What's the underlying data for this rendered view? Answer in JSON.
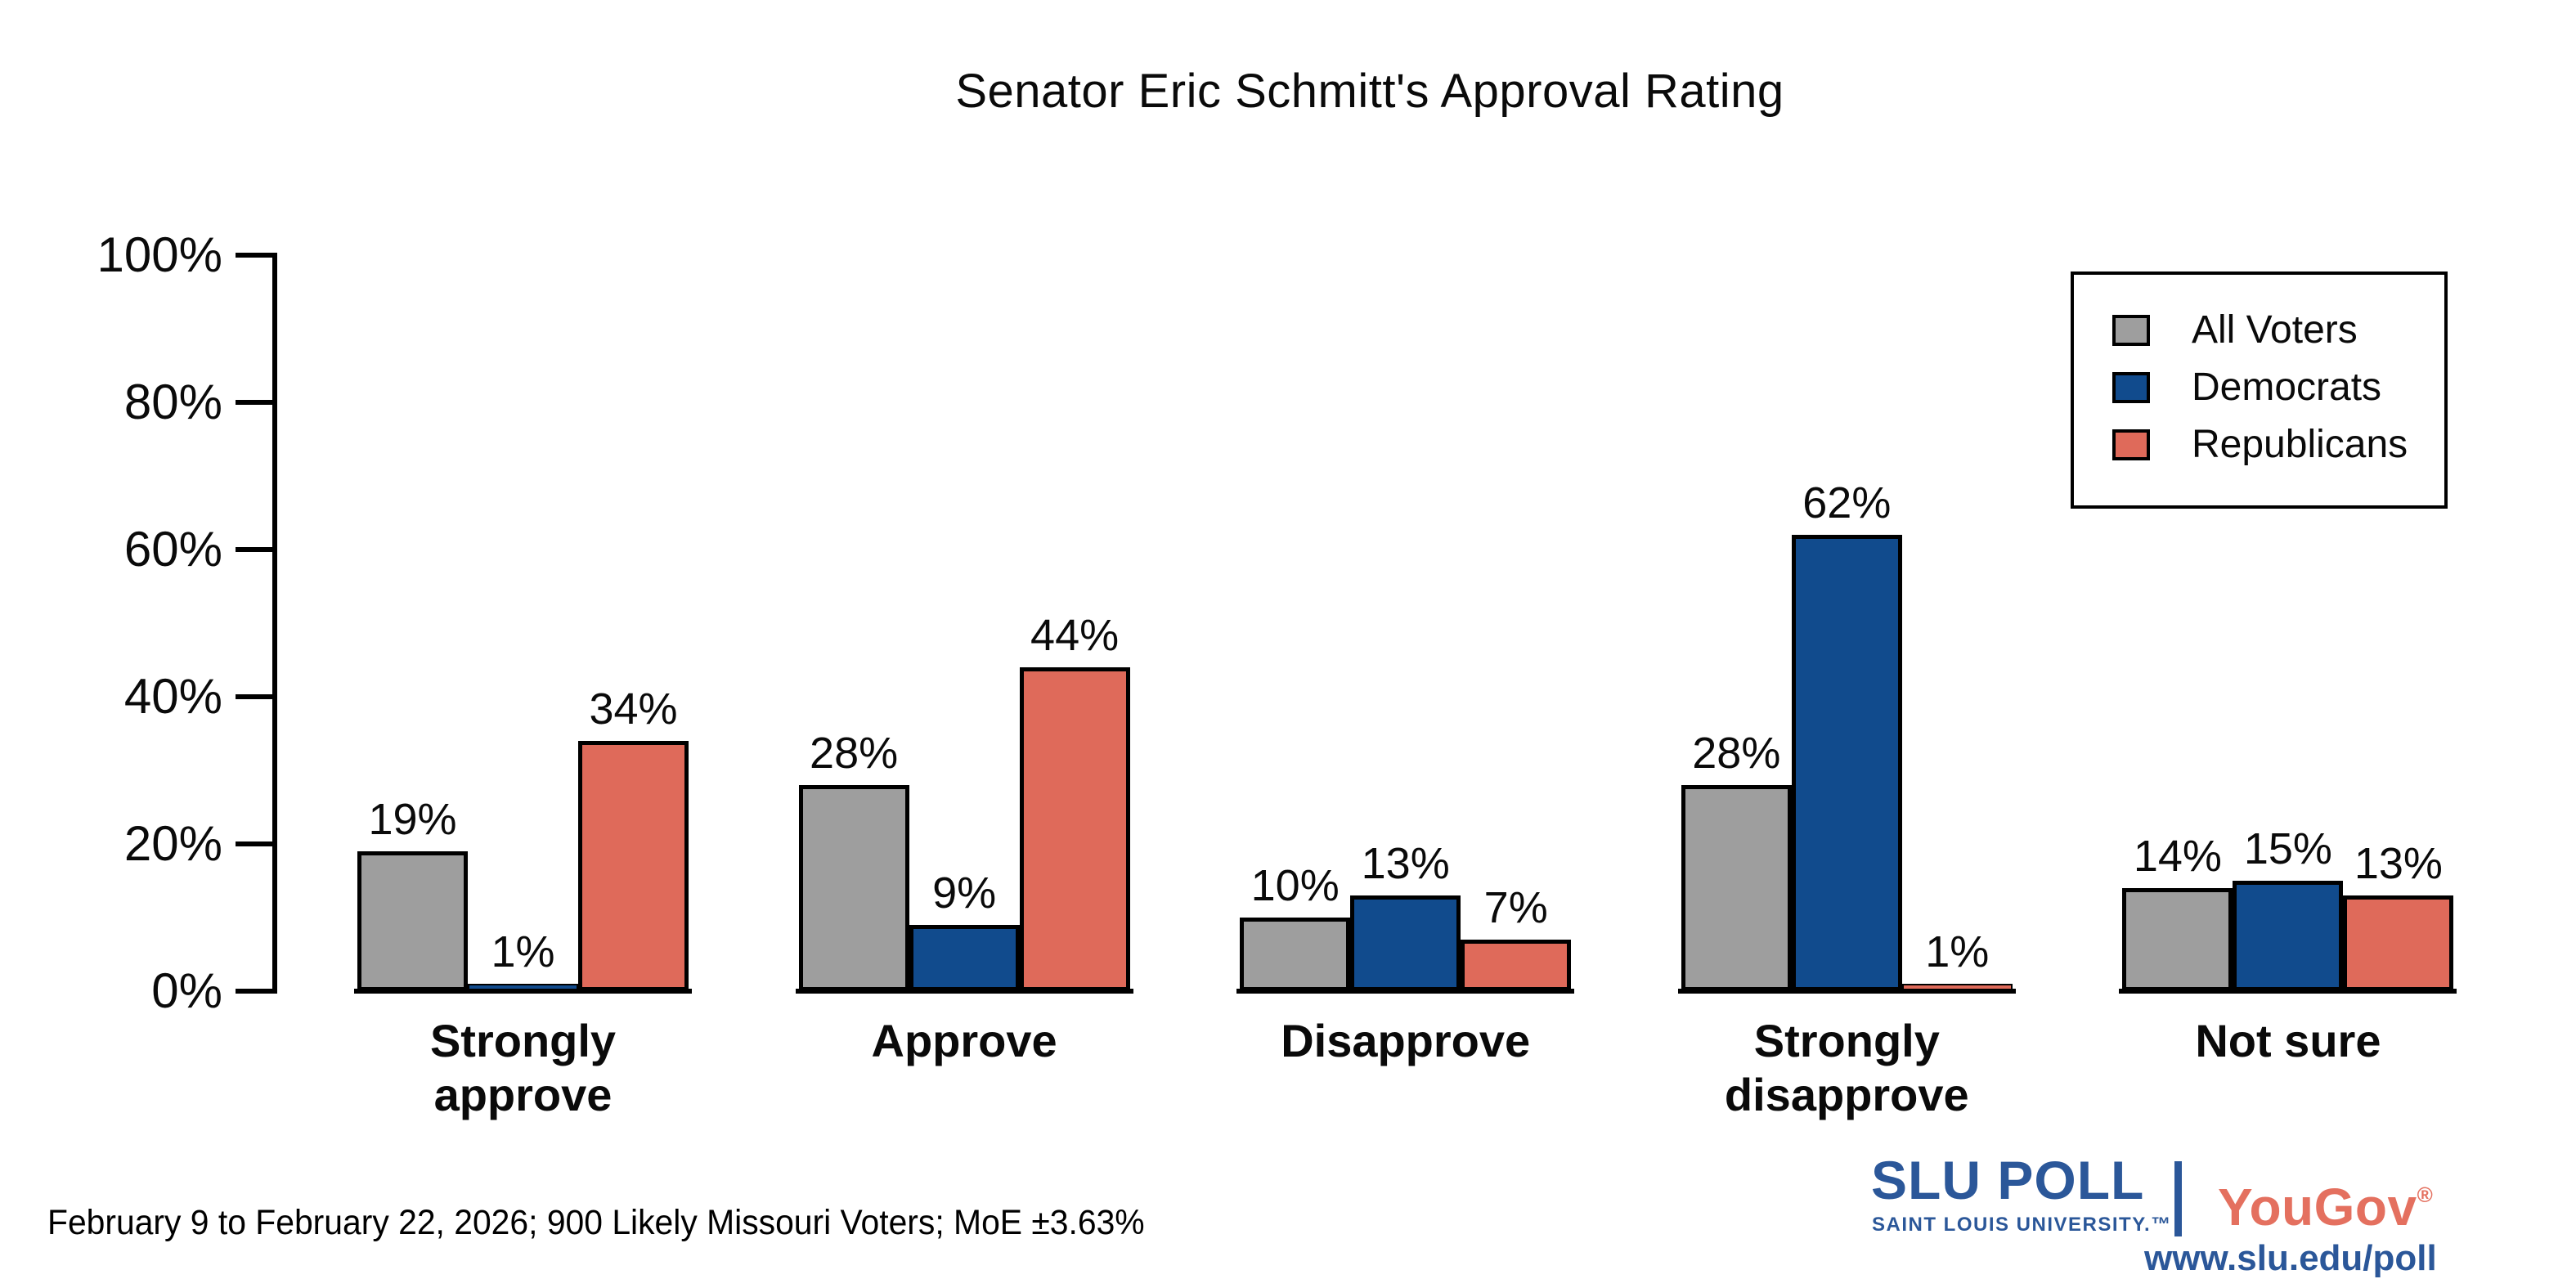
{
  "footer": {
    "text": "February 9 to February 22, 2026; 900 Likely Missouri Voters; MoE ±3.63%"
  },
  "branding": {
    "slu_poll": "SLU POLL",
    "slu_subtitle": "SAINT LOUIS UNIVERSITY.™",
    "partner": "YouGov",
    "registered_mark": "®",
    "url": "www.slu.edu/poll",
    "slu_blue": "#2b5799",
    "yougov_red": "#e4705f"
  },
  "chart_data": {
    "type": "bar",
    "title": "Senator Eric Schmitt's Approval Rating",
    "categories": [
      "Strongly\napprove",
      "Approve",
      "Disapprove",
      "Strongly\ndisapprove",
      "Not sure"
    ],
    "series": [
      {
        "name": "All Voters",
        "color": "#9e9e9e",
        "values": [
          19,
          28,
          10,
          28,
          14
        ]
      },
      {
        "name": "Democrats",
        "color": "#114b8d",
        "values": [
          1,
          9,
          13,
          62,
          15
        ]
      },
      {
        "name": "Republicans",
        "color": "#df6a5a",
        "values": [
          34,
          44,
          7,
          1,
          13
        ]
      }
    ],
    "value_label_suffix": "%",
    "xlabel": "",
    "ylabel": "",
    "ylim": [
      0,
      100
    ],
    "ytick_values": [
      0,
      20,
      40,
      60,
      80,
      100
    ],
    "ytick_suffix": "%",
    "grid": false,
    "legend_position": "top-right",
    "bar_outline_color": "#000000"
  }
}
